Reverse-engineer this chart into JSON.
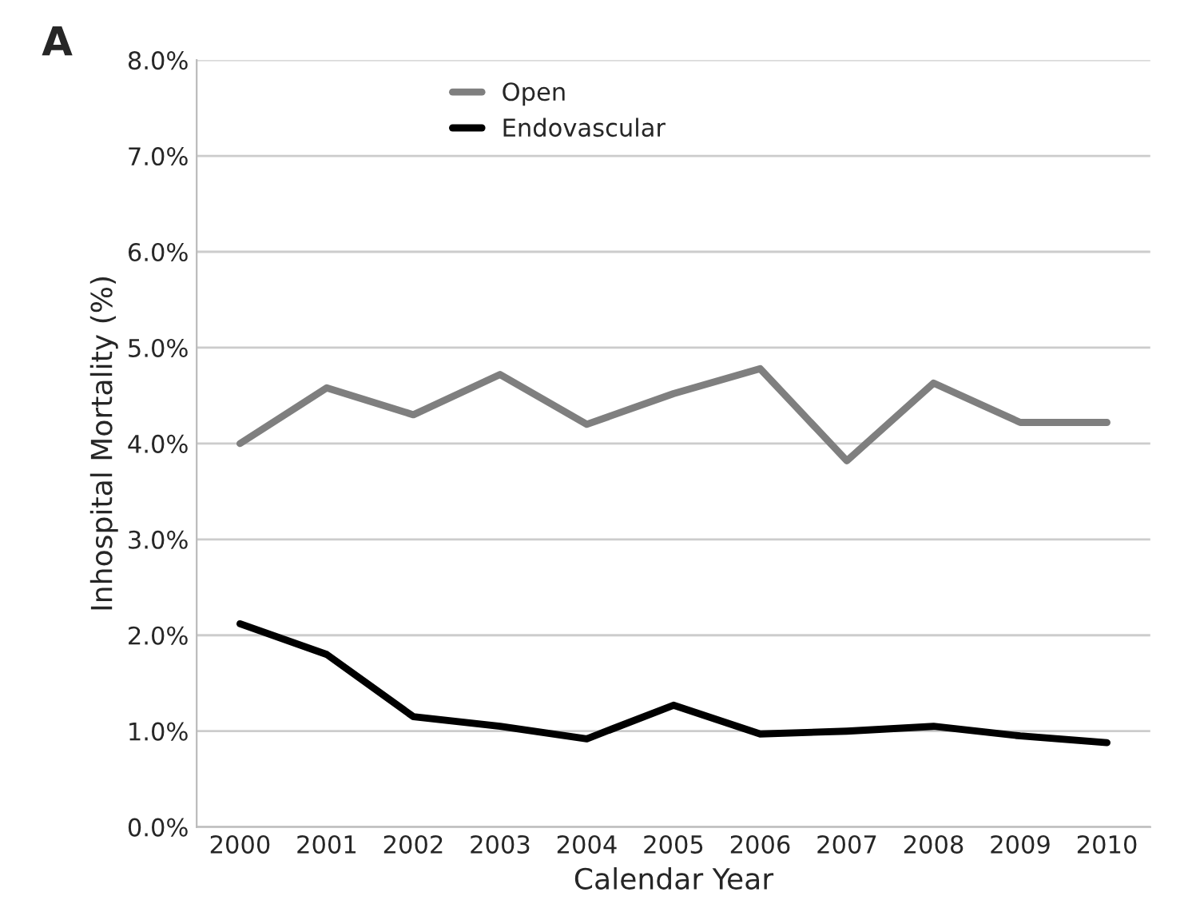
{
  "chart_data": {
    "type": "line",
    "xlabel": "Calendar Year",
    "ylabel": "Inhospital Mortality (%)",
    "annotations": [
      "A"
    ],
    "categories": [
      "2000",
      "2001",
      "2002",
      "2003",
      "2004",
      "2005",
      "2006",
      "2007",
      "2008",
      "2009",
      "2010"
    ],
    "series": [
      {
        "name": "Open",
        "color": "#7f7f7f",
        "values": [
          4.0,
          4.58,
          4.3,
          4.72,
          4.2,
          4.52,
          4.78,
          3.82,
          4.63,
          4.22,
          4.22
        ]
      },
      {
        "name": "Endovascular",
        "color": "#000000",
        "values": [
          2.12,
          1.8,
          1.15,
          1.05,
          0.92,
          1.27,
          0.97,
          1.0,
          1.05,
          0.95,
          0.88
        ]
      }
    ],
    "ylim": [
      0,
      8
    ],
    "yticks": [
      {
        "value": 0,
        "label": "0.0%"
      },
      {
        "value": 1,
        "label": "1.0%"
      },
      {
        "value": 2,
        "label": "2.0%"
      },
      {
        "value": 3,
        "label": "3.0%"
      },
      {
        "value": 4,
        "label": "4.0%"
      },
      {
        "value": 5,
        "label": "5.0%"
      },
      {
        "value": 6,
        "label": "6.0%"
      },
      {
        "value": 7,
        "label": "7.0%"
      },
      {
        "value": 8,
        "label": "8.0%"
      }
    ],
    "grid": "y",
    "legend": "top",
    "marker": "none",
    "line_style": "solid"
  }
}
